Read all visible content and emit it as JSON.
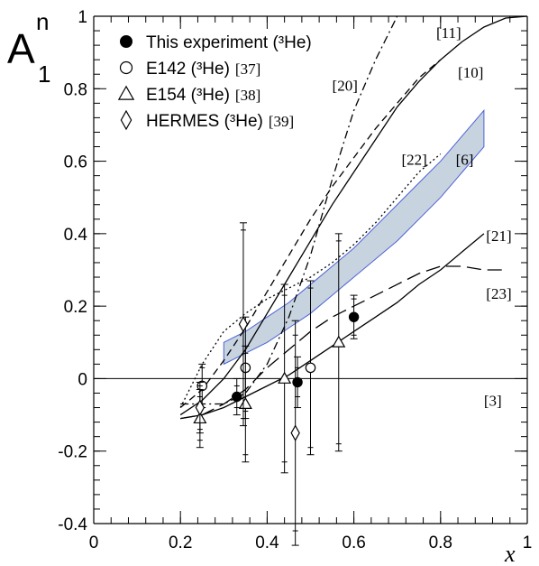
{
  "chart_data": {
    "type": "scatter",
    "xlim": [
      0,
      1
    ],
    "ylim": [
      -0.4,
      1
    ],
    "xlabel": "x",
    "ylabel": {
      "main": "A",
      "sup": "n",
      "sub": "1"
    },
    "xticks": [
      {
        "value": 0,
        "label": "0"
      },
      {
        "value": 0.2,
        "label": "0.2"
      },
      {
        "value": 0.4,
        "label": "0.4"
      },
      {
        "value": 0.6,
        "label": "0.6"
      },
      {
        "value": 0.8,
        "label": "0.8"
      },
      {
        "value": 1,
        "label": "1"
      }
    ],
    "yticks": [
      {
        "value": -0.4,
        "label": "-0.4"
      },
      {
        "value": -0.2,
        "label": "-0.2"
      },
      {
        "value": 0,
        "label": "0"
      },
      {
        "value": 0.2,
        "label": "0.2"
      },
      {
        "value": 0.4,
        "label": "0.4"
      },
      {
        "value": 0.6,
        "label": "0.6"
      },
      {
        "value": 0.8,
        "label": "0.8"
      },
      {
        "value": 1,
        "label": "1"
      }
    ],
    "grid": false,
    "legend_position": "top-left",
    "legend": [
      {
        "marker": "filled-circle",
        "label": "This experiment (³He)",
        "ref": ""
      },
      {
        "marker": "open-circle",
        "label": "E142 (³He)",
        "ref": "[37]"
      },
      {
        "marker": "open-triangle",
        "label": "E154 (³He)",
        "ref": "[38]"
      },
      {
        "marker": "open-diamond",
        "label": "HERMES (³He)",
        "ref": "[39]"
      }
    ],
    "data_series": [
      {
        "marker": "filled-circle",
        "points": [
          {
            "x": 0.33,
            "y": -0.05,
            "err_stat": 0.03,
            "err_tot": 0.05
          },
          {
            "x": 0.47,
            "y": -0.01,
            "err_stat": 0.04,
            "err_tot": 0.07
          },
          {
            "x": 0.6,
            "y": 0.17,
            "err_stat": 0.05,
            "err_tot": 0.06
          }
        ]
      },
      {
        "marker": "open-circle",
        "points": [
          {
            "x": 0.25,
            "y": -0.02,
            "err_stat": 0.05,
            "err_tot": 0.06
          },
          {
            "x": 0.35,
            "y": 0.03,
            "err_stat": 0.12,
            "err_tot": 0.14
          },
          {
            "x": 0.5,
            "y": 0.03,
            "err_stat": 0.22,
            "err_tot": 0.24
          }
        ]
      },
      {
        "marker": "open-triangle",
        "points": [
          {
            "x": 0.245,
            "y": -0.11,
            "err_stat": 0.06,
            "err_tot": 0.08
          },
          {
            "x": 0.35,
            "y": -0.07,
            "err_stat": 0.14,
            "err_tot": 0.16
          },
          {
            "x": 0.44,
            "y": 0.0,
            "err_stat": 0.23,
            "err_tot": 0.26
          },
          {
            "x": 0.565,
            "y": 0.1,
            "err_stat": 0.28,
            "err_tot": 0.3
          }
        ]
      },
      {
        "marker": "open-diamond",
        "points": [
          {
            "x": 0.245,
            "y": -0.08,
            "err_stat": 0.06,
            "err_tot": 0.07
          },
          {
            "x": 0.345,
            "y": 0.15,
            "err_stat": 0.26,
            "err_tot": 0.28
          },
          {
            "x": 0.465,
            "y": -0.15,
            "err_stat": 0.27,
            "err_tot": 0.31
          }
        ]
      }
    ],
    "curves": [
      {
        "ref": "[10]",
        "style": "solid",
        "points": [
          [
            0.2,
            -0.1
          ],
          [
            0.25,
            -0.06
          ],
          [
            0.3,
            0.0
          ],
          [
            0.35,
            0.08
          ],
          [
            0.4,
            0.18
          ],
          [
            0.45,
            0.28
          ],
          [
            0.5,
            0.38
          ],
          [
            0.55,
            0.48
          ],
          [
            0.6,
            0.57
          ],
          [
            0.65,
            0.66
          ],
          [
            0.7,
            0.75
          ],
          [
            0.75,
            0.82
          ],
          [
            0.8,
            0.88
          ],
          [
            0.85,
            0.93
          ],
          [
            0.9,
            0.97
          ],
          [
            0.95,
            0.995
          ],
          [
            1.0,
            1.0
          ]
        ]
      },
      {
        "ref": "[11]",
        "style": "dashed",
        "points": [
          [
            0.2,
            -0.08
          ],
          [
            0.25,
            -0.03
          ],
          [
            0.3,
            0.05
          ],
          [
            0.35,
            0.14
          ],
          [
            0.4,
            0.24
          ],
          [
            0.45,
            0.34
          ],
          [
            0.5,
            0.44
          ],
          [
            0.55,
            0.53
          ],
          [
            0.6,
            0.61
          ],
          [
            0.65,
            0.69
          ],
          [
            0.7,
            0.76
          ],
          [
            0.75,
            0.83
          ],
          [
            0.8,
            0.88
          ]
        ]
      },
      {
        "ref": "[20]",
        "style": "dashdot",
        "points": [
          [
            0.2,
            -0.07
          ],
          [
            0.25,
            -0.07
          ],
          [
            0.3,
            -0.07
          ],
          [
            0.35,
            -0.04
          ],
          [
            0.4,
            0.04
          ],
          [
            0.45,
            0.17
          ],
          [
            0.5,
            0.34
          ],
          [
            0.55,
            0.55
          ],
          [
            0.6,
            0.74
          ],
          [
            0.65,
            0.88
          ],
          [
            0.7,
            1.0
          ]
        ]
      },
      {
        "ref": "[22]",
        "style": "dotted",
        "points": [
          [
            0.2,
            -0.08
          ],
          [
            0.25,
            0.04
          ],
          [
            0.3,
            0.13
          ],
          [
            0.35,
            0.18
          ],
          [
            0.4,
            0.22
          ],
          [
            0.45,
            0.25
          ],
          [
            0.5,
            0.28
          ],
          [
            0.55,
            0.32
          ],
          [
            0.6,
            0.37
          ],
          [
            0.65,
            0.43
          ],
          [
            0.7,
            0.5
          ],
          [
            0.75,
            0.57
          ],
          [
            0.78,
            0.6
          ],
          [
            0.8,
            0.62
          ]
        ]
      },
      {
        "ref": "[21]",
        "style": "solid",
        "points": [
          [
            0.2,
            -0.11
          ],
          [
            0.25,
            -0.1
          ],
          [
            0.3,
            -0.08
          ],
          [
            0.35,
            -0.05
          ],
          [
            0.4,
            -0.02
          ],
          [
            0.45,
            0.01
          ],
          [
            0.5,
            0.05
          ],
          [
            0.55,
            0.09
          ],
          [
            0.6,
            0.13
          ],
          [
            0.65,
            0.17
          ],
          [
            0.7,
            0.21
          ],
          [
            0.75,
            0.26
          ],
          [
            0.8,
            0.3
          ],
          [
            0.85,
            0.35
          ],
          [
            0.9,
            0.4
          ]
        ]
      },
      {
        "ref": "[23]",
        "style": "longdash",
        "points": [
          [
            0.2,
            -0.11
          ],
          [
            0.25,
            -0.1
          ],
          [
            0.3,
            -0.07
          ],
          [
            0.35,
            -0.03
          ],
          [
            0.4,
            0.03
          ],
          [
            0.45,
            0.08
          ],
          [
            0.5,
            0.13
          ],
          [
            0.55,
            0.17
          ],
          [
            0.6,
            0.2
          ],
          [
            0.65,
            0.23
          ],
          [
            0.7,
            0.26
          ],
          [
            0.75,
            0.29
          ],
          [
            0.8,
            0.31
          ],
          [
            0.85,
            0.31
          ],
          [
            0.9,
            0.3
          ],
          [
            0.95,
            0.3
          ]
        ]
      }
    ],
    "band": {
      "ref": "[6]",
      "fill": "#c8d3e0",
      "stroke": "#4a63d6",
      "lower": [
        [
          0.3,
          0.04
        ],
        [
          0.35,
          0.07
        ],
        [
          0.4,
          0.1
        ],
        [
          0.45,
          0.14
        ],
        [
          0.5,
          0.18
        ],
        [
          0.55,
          0.23
        ],
        [
          0.6,
          0.28
        ],
        [
          0.65,
          0.33
        ],
        [
          0.7,
          0.38
        ],
        [
          0.75,
          0.44
        ],
        [
          0.8,
          0.5
        ],
        [
          0.85,
          0.57
        ],
        [
          0.9,
          0.64
        ]
      ],
      "upper": [
        [
          0.3,
          0.1
        ],
        [
          0.35,
          0.13
        ],
        [
          0.4,
          0.17
        ],
        [
          0.45,
          0.21
        ],
        [
          0.5,
          0.26
        ],
        [
          0.55,
          0.31
        ],
        [
          0.6,
          0.36
        ],
        [
          0.65,
          0.42
        ],
        [
          0.7,
          0.48
        ],
        [
          0.75,
          0.54
        ],
        [
          0.8,
          0.6
        ],
        [
          0.85,
          0.67
        ],
        [
          0.9,
          0.74
        ]
      ]
    },
    "ref_labels": [
      {
        "text": "[11]",
        "x": 0.79,
        "y": 0.955
      },
      {
        "text": "[10]",
        "x": 0.84,
        "y": 0.845
      },
      {
        "text": "[20]",
        "x": 0.55,
        "y": 0.81
      },
      {
        "text": "[22]",
        "x": 0.71,
        "y": 0.605
      },
      {
        "text": "[6]",
        "x": 0.835,
        "y": 0.605
      },
      {
        "text": "[21]",
        "x": 0.905,
        "y": 0.395
      },
      {
        "text": "[23]",
        "x": 0.905,
        "y": 0.235
      },
      {
        "text": "[3]",
        "x": 0.9,
        "y": -0.06
      }
    ]
  }
}
